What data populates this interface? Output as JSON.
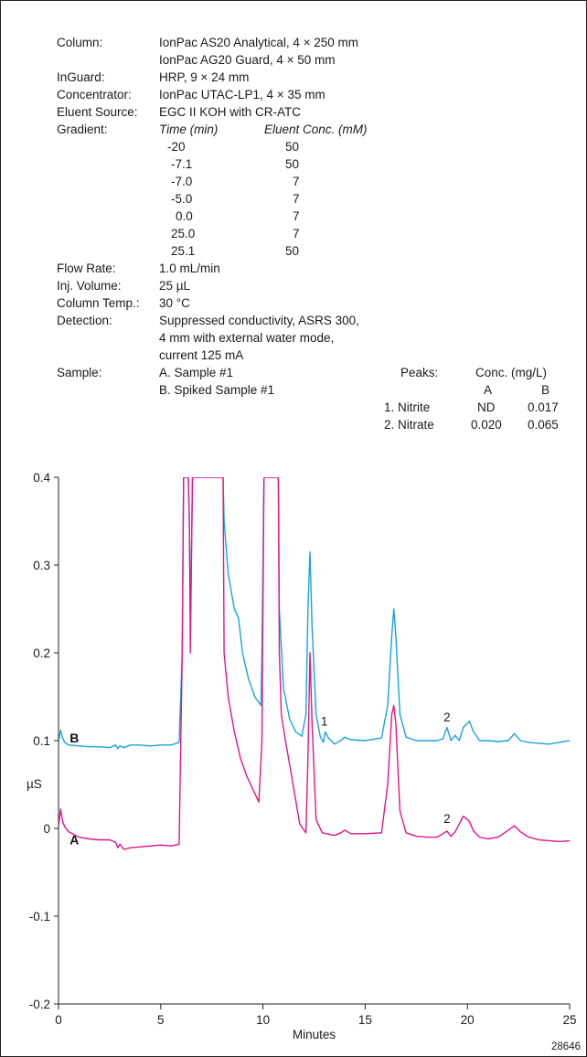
{
  "conditions": [
    {
      "label": "Column:",
      "lines": [
        "IonPac AS20 Analytical, 4 × 250 mm",
        "IonPac AG20 Guard, 4 × 50 mm"
      ]
    },
    {
      "label": "InGuard:",
      "lines": [
        "HRP, 9 × 24 mm"
      ]
    },
    {
      "label": "Concentrator:",
      "lines": [
        "IonPac UTAC-LP1, 4 × 35 mm"
      ]
    },
    {
      "label": "Eluent Source:",
      "lines": [
        "EGC II KOH with CR-ATC"
      ]
    },
    {
      "label": "Gradient:",
      "lines": []
    }
  ],
  "gradient": {
    "headers": [
      "Time (min)",
      "Eluent Conc. (mM)"
    ],
    "rows": [
      [
        "-20",
        "50"
      ],
      [
        "-7.1",
        "50"
      ],
      [
        "-7.0",
        "7"
      ],
      [
        "-5.0",
        "7"
      ],
      [
        "0.0",
        "7"
      ],
      [
        "25.0",
        "7"
      ],
      [
        "25.1",
        "50"
      ]
    ]
  },
  "conditions2": [
    {
      "label": "Flow Rate:",
      "lines": [
        "1.0 mL/min"
      ]
    },
    {
      "label": "Inj. Volume:",
      "lines": [
        "25 µL"
      ]
    },
    {
      "label": "Column Temp.:",
      "lines": [
        "30 °C"
      ]
    },
    {
      "label": "Detection:",
      "lines": [
        "Suppressed conductivity, ASRS 300,",
        "4 mm with external water mode,",
        "current 125 mA"
      ]
    },
    {
      "label": "Sample:",
      "lines": [
        "A. Sample #1",
        "B. Spiked Sample #1"
      ]
    }
  ],
  "peaks_table": {
    "title": "Peaks:",
    "conc_header": "Conc. (mg/L)",
    "col_a": "A",
    "col_b": "B",
    "rows": [
      {
        "name": "1. Nitrite",
        "a": "ND",
        "b": "0.017"
      },
      {
        "name": "2. Nitrate",
        "a": "0.020",
        "b": "0.065"
      }
    ]
  },
  "chart_data": {
    "type": "line",
    "xlabel": "Minutes",
    "ylabel": "µS",
    "xlim": [
      0,
      25
    ],
    "ylim": [
      -0.2,
      0.4
    ],
    "xticks": [
      "0",
      "5",
      "10",
      "15",
      "20",
      "25"
    ],
    "yticks": [
      "-0.2",
      "-0.1",
      "0",
      "0.1",
      "0.2",
      "0.3",
      "0.4"
    ],
    "figure_id": "28646",
    "series": [
      {
        "name": "B",
        "color": "#1aa3d9",
        "x": [
          0,
          0.1,
          0.2,
          0.3,
          0.5,
          1,
          1.5,
          2,
          2.5,
          2.8,
          2.9,
          3.0,
          3.2,
          3.5,
          4,
          4.5,
          5,
          5.5,
          5.9,
          6.05,
          6.12,
          6.2,
          6.35,
          6.4,
          6.45,
          6.5,
          6.55,
          6.65,
          8.05,
          8.1,
          8.3,
          8.6,
          8.7,
          8.8,
          9.0,
          9.3,
          9.6,
          9.9,
          9.95,
          10.05,
          10.1,
          10.25,
          10.5,
          10.75,
          10.8,
          11.0,
          11.3,
          11.6,
          11.9,
          12.1,
          12.2,
          12.3,
          12.4,
          12.6,
          12.8,
          12.95,
          13.05,
          13.2,
          13.5,
          13.8,
          14.0,
          14.3,
          15.0,
          15.8,
          16.1,
          16.3,
          16.4,
          16.5,
          16.7,
          17.0,
          17.5,
          18.0,
          18.5,
          18.8,
          19.0,
          19.2,
          19.4,
          19.6,
          19.8,
          20.1,
          20.3,
          20.6,
          21.0,
          21.5,
          22.0,
          22.3,
          22.6,
          23.0,
          23.5,
          24.0,
          24.5,
          25.0
        ],
        "y": [
          0.097,
          0.112,
          0.103,
          0.098,
          0.095,
          0.094,
          0.093,
          0.093,
          0.092,
          0.095,
          0.091,
          0.094,
          0.092,
          0.095,
          0.095,
          0.094,
          0.095,
          0.095,
          0.098,
          0.2,
          0.4,
          0.4,
          0.4,
          0.35,
          0.24,
          0.3,
          0.4,
          0.4,
          0.4,
          0.35,
          0.29,
          0.25,
          0.245,
          0.24,
          0.2,
          0.17,
          0.15,
          0.14,
          0.2,
          0.4,
          0.4,
          0.4,
          0.4,
          0.4,
          0.25,
          0.16,
          0.125,
          0.11,
          0.105,
          0.13,
          0.25,
          0.315,
          0.23,
          0.13,
          0.105,
          0.098,
          0.11,
          0.103,
          0.096,
          0.1,
          0.104,
          0.101,
          0.1,
          0.103,
          0.14,
          0.22,
          0.25,
          0.22,
          0.13,
          0.104,
          0.1,
          0.1,
          0.1,
          0.102,
          0.115,
          0.1,
          0.106,
          0.1,
          0.115,
          0.122,
          0.11,
          0.1,
          0.1,
          0.099,
          0.1,
          0.108,
          0.1,
          0.098,
          0.097,
          0.096,
          0.098,
          0.1
        ]
      },
      {
        "name": "A",
        "color": "#e0168a",
        "x": [
          0,
          0.1,
          0.2,
          0.3,
          0.5,
          1,
          1.5,
          2,
          2.5,
          2.8,
          2.9,
          3.0,
          3.2,
          3.5,
          4,
          4.5,
          5,
          5.5,
          5.9,
          6.05,
          6.12,
          6.2,
          6.35,
          6.4,
          6.45,
          6.5,
          6.55,
          6.65,
          8.05,
          8.1,
          8.3,
          8.6,
          8.9,
          9.2,
          9.5,
          9.8,
          9.95,
          10.05,
          10.1,
          10.25,
          10.5,
          10.75,
          10.8,
          10.9,
          11.1,
          11.4,
          11.8,
          12.1,
          12.2,
          12.3,
          12.4,
          12.6,
          12.9,
          13.5,
          13.8,
          14.0,
          14.3,
          15.0,
          15.8,
          16.1,
          16.3,
          16.4,
          16.5,
          16.7,
          17.0,
          17.5,
          18.0,
          18.5,
          18.8,
          19.0,
          19.2,
          19.4,
          19.6,
          19.8,
          20.1,
          20.3,
          20.6,
          21.0,
          21.5,
          22.0,
          22.3,
          22.6,
          23.0,
          23.5,
          24.0,
          24.5,
          25.0
        ],
        "y": [
          0.002,
          0.022,
          0.008,
          0.002,
          -0.004,
          -0.01,
          -0.012,
          -0.013,
          -0.013,
          -0.016,
          -0.022,
          -0.018,
          -0.024,
          -0.022,
          -0.021,
          -0.02,
          -0.019,
          -0.02,
          -0.018,
          0.2,
          0.4,
          0.4,
          0.4,
          0.35,
          0.2,
          0.3,
          0.4,
          0.4,
          0.4,
          0.2,
          0.15,
          0.11,
          0.08,
          0.06,
          0.045,
          0.03,
          0.1,
          0.4,
          0.4,
          0.4,
          0.4,
          0.4,
          0.2,
          0.13,
          0.1,
          0.06,
          0.005,
          -0.005,
          0.08,
          0.2,
          0.12,
          0.01,
          -0.005,
          -0.008,
          -0.005,
          -0.002,
          -0.006,
          -0.006,
          -0.005,
          0.05,
          0.13,
          0.14,
          0.12,
          0.02,
          -0.005,
          -0.009,
          -0.01,
          -0.01,
          -0.006,
          -0.003,
          -0.009,
          -0.004,
          0.005,
          0.014,
          0.008,
          -0.003,
          -0.01,
          -0.012,
          -0.01,
          -0.002,
          0.003,
          -0.004,
          -0.01,
          -0.013,
          -0.014,
          -0.015,
          -0.014
        ]
      }
    ],
    "annotations": [
      {
        "text": "1",
        "x": 13.0,
        "y": 0.117,
        "series": "B"
      },
      {
        "text": "2",
        "x": 19.0,
        "y": 0.122,
        "series": "B"
      },
      {
        "text": "2",
        "x": 19.0,
        "y": 0.006,
        "series": "A"
      }
    ],
    "trace_labels": [
      {
        "text": "B",
        "x": 0.55,
        "y": 0.104
      },
      {
        "text": "A",
        "x": 0.55,
        "y": -0.012
      }
    ],
    "grid": false
  }
}
